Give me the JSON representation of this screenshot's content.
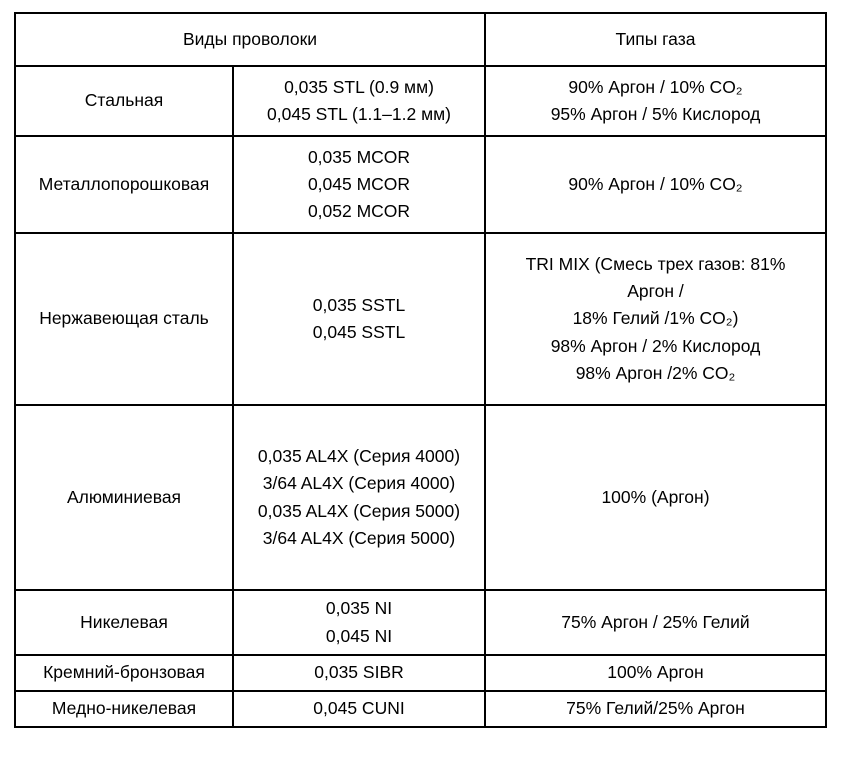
{
  "table": {
    "header": {
      "wire_types": "Виды проволоки",
      "gas_types": "Типы газа"
    },
    "rows": [
      {
        "wire": "Стальная",
        "sizes": [
          "0,035 STL (0.9 мм)",
          "0,045 STL (1.1–1.2 мм)"
        ],
        "gases": [
          "90% Аргон / 10% CO₂",
          "95% Аргон / 5% Кислород"
        ]
      },
      {
        "wire": "Металлопорошковая",
        "sizes": [
          "0,035 MCOR",
          "0,045 MCOR",
          "0,052 MCOR"
        ],
        "gases": [
          "90% Аргон / 10% CO₂"
        ]
      },
      {
        "wire": "Нержавеющая сталь",
        "sizes": [
          "0,035 SSTL",
          "0,045 SSTL"
        ],
        "gases": [
          "TRI MIX (Смесь трех газов: 81%",
          "Аргон /",
          "18% Гелий /1% CO₂)",
          "98% Аргон / 2% Кислород",
          "98% Аргон /2% CO₂"
        ]
      },
      {
        "wire": "Алюминиевая",
        "sizes": [
          "0,035 AL4X (Серия 4000)",
          "3/64 AL4X (Серия 4000)",
          "0,035 AL4X (Серия 5000)",
          "3/64 AL4X (Серия 5000)"
        ],
        "gases": [
          "100% (Аргон)"
        ]
      },
      {
        "wire": "Никелевая",
        "sizes": [
          "0,035 NI",
          "0,045 NI"
        ],
        "gases": [
          "75% Аргон / 25% Гелий"
        ]
      },
      {
        "wire": "Кремний-бронзовая",
        "sizes": [
          "0,035 SIBR"
        ],
        "gases": [
          "100% Аргон"
        ]
      },
      {
        "wire": "Медно-никелевая",
        "sizes": [
          "0,045 CUNI"
        ],
        "gases": [
          "75% Гелий/25% Аргон"
        ]
      }
    ]
  }
}
